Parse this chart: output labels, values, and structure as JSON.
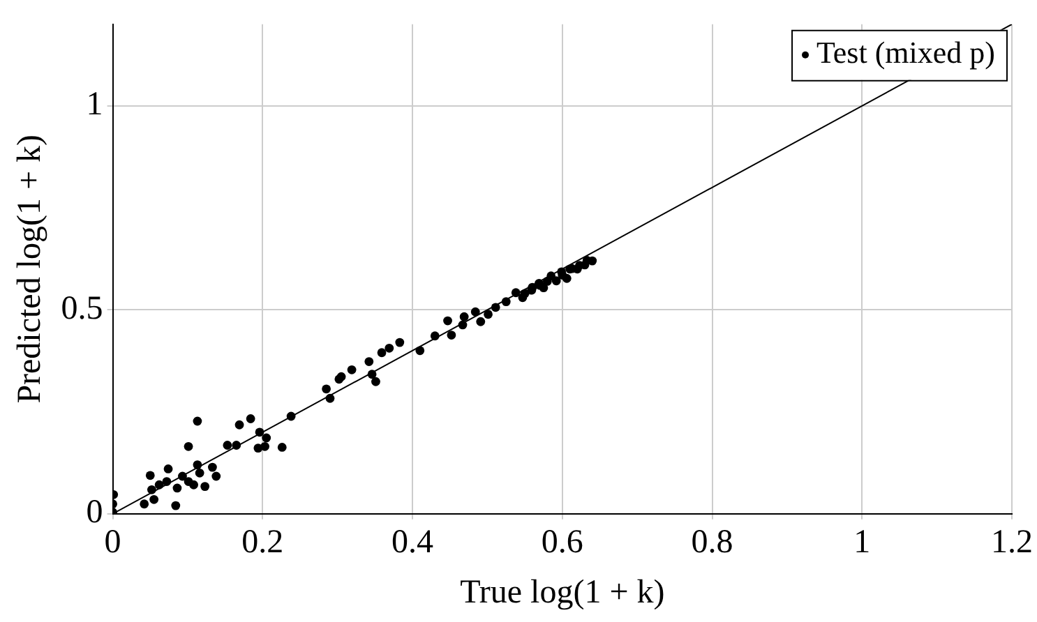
{
  "chart_data": {
    "type": "scatter",
    "xlabel": "True log(1 + k)",
    "ylabel": "Predicted log(1 + k)",
    "xlim": [
      0,
      1.2
    ],
    "ylim": [
      0,
      1.2
    ],
    "xticks": [
      0,
      0.2,
      0.4,
      0.6,
      0.8,
      1,
      1.2
    ],
    "yticks": [
      0,
      0.5,
      1
    ],
    "grid": true,
    "legend": "top right",
    "series": [
      {
        "name": "Test (mixed p)",
        "marker": "circle",
        "color": "#000000",
        "x": [
          0.001,
          0,
          0,
          0.042,
          0.055,
          0.052,
          0.05,
          0.062,
          0.074,
          0.072,
          0.084,
          0.086,
          0.093,
          0.101,
          0.108,
          0.113,
          0.113,
          0.101,
          0.116,
          0.123,
          0.133,
          0.138,
          0.153,
          0.165,
          0.169,
          0.184,
          0.196,
          0.205,
          0.194,
          0.203,
          0.226,
          0.238,
          0.285,
          0.29,
          0.305,
          0.302,
          0.319,
          0.342,
          0.346,
          0.351,
          0.359,
          0.369,
          0.383,
          0.41,
          0.43,
          0.447,
          0.452,
          0.467,
          0.469,
          0.484,
          0.491,
          0.501,
          0.511,
          0.525,
          0.538,
          0.547,
          0.559,
          0.569,
          0.575,
          0.585,
          0.592,
          0.599,
          0.606,
          0.613,
          0.623,
          0.633,
          0.56,
          0.58,
          0.6,
          0.62,
          0.55,
          0.57,
          0.61,
          0.64,
          0.63
        ],
        "values": [
          0.047,
          0.024,
          0.004,
          0.024,
          0.035,
          0.059,
          0.094,
          0.071,
          0.11,
          0.079,
          0.02,
          0.063,
          0.092,
          0.079,
          0.071,
          0.12,
          0.227,
          0.165,
          0.1,
          0.067,
          0.114,
          0.092,
          0.168,
          0.168,
          0.218,
          0.233,
          0.2,
          0.186,
          0.161,
          0.165,
          0.163,
          0.239,
          0.306,
          0.283,
          0.336,
          0.33,
          0.353,
          0.373,
          0.342,
          0.324,
          0.395,
          0.406,
          0.42,
          0.4,
          0.436,
          0.473,
          0.438,
          0.463,
          0.483,
          0.495,
          0.471,
          0.489,
          0.506,
          0.52,
          0.542,
          0.53,
          0.548,
          0.565,
          0.554,
          0.583,
          0.571,
          0.593,
          0.577,
          0.601,
          0.609,
          0.621,
          0.555,
          0.57,
          0.585,
          0.6,
          0.54,
          0.56,
          0.6,
          0.62,
          0.61
        ]
      },
      {
        "type": "line",
        "marker": "none",
        "color": "#000000",
        "x": [
          0,
          1.2
        ],
        "values": [
          0,
          1.2
        ]
      }
    ]
  }
}
